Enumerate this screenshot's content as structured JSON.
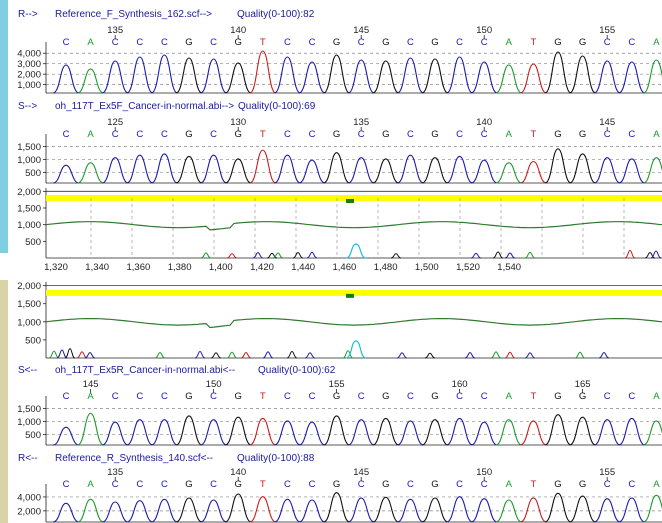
{
  "colors": {
    "A": "#1a9a2a",
    "C": "#1a1ab0",
    "G": "#111111",
    "T": "#cc1a1a",
    "sidebar_top": "#7fcfe0",
    "sidebar_bottom": "#d9d4a8",
    "highlight": "#ffff00",
    "green_line": "#2f7a2f",
    "marker": "#1a7a1a"
  },
  "tracks": {
    "t1": {
      "dir": "R-->",
      "file": "Reference_F_Synthesis_162.scf-->",
      "quality": "Quality(0-100):82",
      "yticks": [
        "4,000",
        "3,000",
        "2,000",
        "1,000"
      ],
      "ymax": 4500,
      "positions": [
        {
          "label": "135",
          "i": 2
        },
        {
          "label": "140",
          "i": 7
        },
        {
          "label": "145",
          "i": 12
        },
        {
          "label": "150",
          "i": 17
        },
        {
          "label": "155",
          "i": 22
        }
      ],
      "bases": [
        "C",
        "A",
        "C",
        "C",
        "C",
        "G",
        "C",
        "G",
        "T",
        "C",
        "C",
        "G",
        "C",
        "G",
        "C",
        "G",
        "C",
        "C",
        "A",
        "T",
        "G",
        "G",
        "C",
        "C",
        "A"
      ],
      "peaks": [
        2800,
        2400,
        3200,
        3600,
        3800,
        3500,
        3400,
        3000,
        4200,
        3600,
        3100,
        3800,
        3300,
        3200,
        3500,
        3400,
        3600,
        3100,
        2800,
        2900,
        4100,
        3700,
        3200,
        3100,
        3300
      ]
    },
    "t2": {
      "dir": "S-->",
      "file": "oh_117T_Ex5F_Cancer-in-normal.abi-->",
      "quality": "Quality(0-100):69",
      "yticks": [
        "1,500",
        "1,000",
        "500"
      ],
      "ymax": 1700,
      "positions": [
        {
          "label": "125",
          "i": 2
        },
        {
          "label": "130",
          "i": 7
        },
        {
          "label": "135",
          "i": 12
        },
        {
          "label": "140",
          "i": 17
        },
        {
          "label": "145",
          "i": 22
        }
      ],
      "bases": [
        "C",
        "A",
        "C",
        "C",
        "C",
        "G",
        "C",
        "G",
        "T",
        "C",
        "C",
        "G",
        "C",
        "G",
        "C",
        "G",
        "C",
        "C",
        "A",
        "T",
        "G",
        "G",
        "C",
        "C",
        "A"
      ],
      "peaks": [
        700,
        800,
        1000,
        1100,
        1150,
        1050,
        1100,
        950,
        1300,
        1100,
        900,
        1200,
        1000,
        950,
        1100,
        1000,
        1050,
        900,
        800,
        850,
        1350,
        1150,
        1000,
        950,
        1000
      ]
    },
    "t3": {
      "dir": "S<--",
      "file": "oh_117T_Ex5R_Cancer-in-normal.abi<--",
      "quality": "Quality(0-100):62",
      "yticks": [
        "1,500",
        "1,000",
        "500"
      ],
      "ymax": 1700,
      "positions": [
        {
          "label": "145",
          "i": 1
        },
        {
          "label": "150",
          "i": 6
        },
        {
          "label": "155",
          "i": 11
        },
        {
          "label": "160",
          "i": 16
        },
        {
          "label": "165",
          "i": 21
        }
      ],
      "bases": [
        "C",
        "A",
        "C",
        "C",
        "C",
        "G",
        "C",
        "G",
        "T",
        "C",
        "C",
        "G",
        "C",
        "G",
        "C",
        "G",
        "C",
        "C",
        "A",
        "T",
        "G",
        "G",
        "C",
        "C",
        "A"
      ],
      "peaks": [
        700,
        1250,
        900,
        1000,
        1000,
        1150,
        1000,
        1100,
        1050,
        950,
        900,
        1150,
        1000,
        1050,
        950,
        1000,
        1050,
        900,
        1000,
        950,
        1200,
        1100,
        1000,
        1050,
        950
      ]
    },
    "t4": {
      "dir": "R<--",
      "file": "Reference_R_Synthesis_140.scf<--",
      "quality": "Quality(0-100):88",
      "yticks": [
        "4,000",
        "2,000"
      ],
      "ymax": 4800,
      "positions": [
        {
          "label": "135",
          "i": 2
        },
        {
          "label": "140",
          "i": 7
        },
        {
          "label": "145",
          "i": 12
        },
        {
          "label": "150",
          "i": 17
        },
        {
          "label": "155",
          "i": 22
        }
      ],
      "bases": [
        "C",
        "A",
        "C",
        "C",
        "C",
        "G",
        "C",
        "G",
        "T",
        "C",
        "C",
        "G",
        "C",
        "G",
        "C",
        "G",
        "C",
        "C",
        "A",
        "T",
        "G",
        "G",
        "C",
        "C",
        "A"
      ],
      "peaks": [
        2800,
        3400,
        3000,
        3200,
        3400,
        3600,
        3300,
        4200,
        3800,
        3400,
        3300,
        4400,
        3600,
        3700,
        3400,
        3600,
        3800,
        3500,
        3300,
        3600,
        4300,
        3900,
        3500,
        3600,
        4000
      ]
    }
  },
  "diff1": {
    "yticks": [
      "2,000",
      "1,500",
      "1,000",
      "500"
    ],
    "ymax": 2100,
    "xticks": [
      "1,320",
      "1,340",
      "1,360",
      "1,380",
      "1,400",
      "1,420",
      "1,440",
      "1,460",
      "1,480",
      "1,500",
      "1,520",
      "1,540"
    ]
  },
  "diff2": {
    "yticks": [
      "2,000",
      "1,500",
      "1,000",
      "500"
    ],
    "ymax": 2100
  }
}
